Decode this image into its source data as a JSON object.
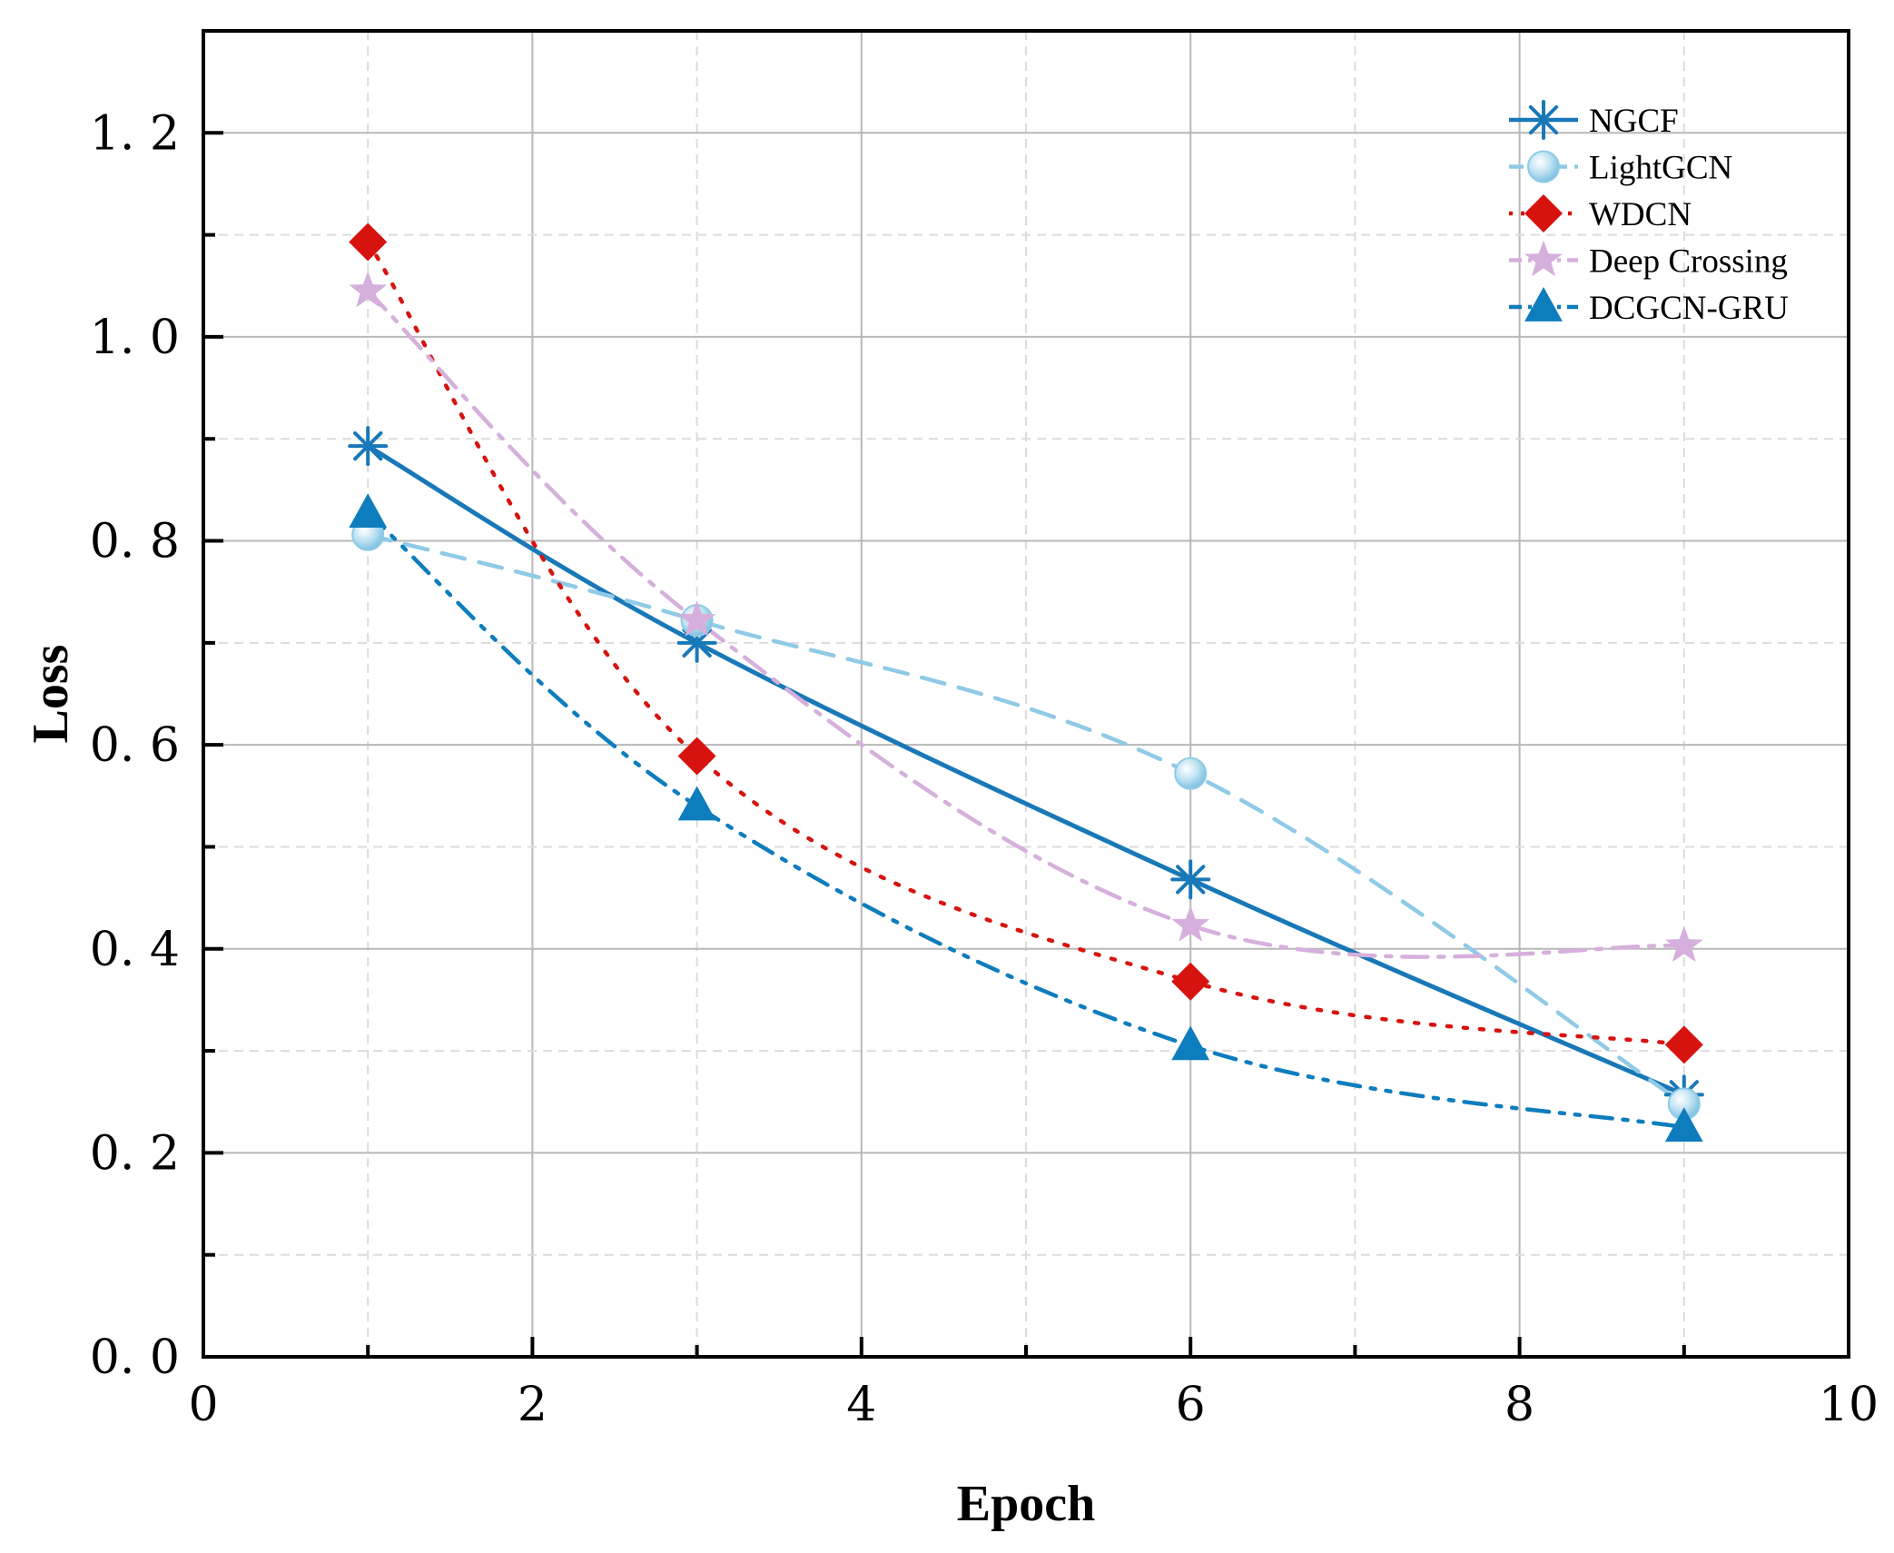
{
  "chart_data": {
    "type": "line",
    "title": "",
    "xlabel": "Epoch",
    "ylabel": "Loss",
    "xlim": [
      0,
      10
    ],
    "ylim": [
      0,
      1.3
    ],
    "xticks": [
      0,
      2,
      4,
      6,
      8,
      10
    ],
    "xtick_labels": [
      "0",
      "2",
      "4",
      "6",
      "8",
      "10"
    ],
    "yticks": [
      0.0,
      0.2,
      0.4,
      0.6,
      0.8,
      1.0,
      1.2
    ],
    "ytick_labels": [
      "0. 0",
      "0. 2",
      "0. 4",
      "0. 6",
      "0. 8",
      "1. 0",
      "1. 2"
    ],
    "grid": true,
    "legend_position": "top-right",
    "x": [
      1,
      3,
      6,
      9
    ],
    "series": [
      {
        "name": "NGCF",
        "values": [
          0.893,
          0.7,
          0.468,
          0.257
        ],
        "color": "#1878b8",
        "marker": "asterisk",
        "line": "solid"
      },
      {
        "name": "LightGCN",
        "values": [
          0.806,
          0.722,
          0.572,
          0.248
        ],
        "color": "#8fcae6",
        "marker": "circle",
        "line": "dashed"
      },
      {
        "name": "WDCN",
        "values": [
          1.093,
          0.589,
          0.368,
          0.306
        ],
        "color": "#d7130f",
        "marker": "diamond",
        "line": "dotted"
      },
      {
        "name": "Deep Crossing",
        "values": [
          1.045,
          0.722,
          0.423,
          0.403
        ],
        "color": "#d6b0dc",
        "marker": "star",
        "line": "dashdot"
      },
      {
        "name": "DCGCN-GRU",
        "values": [
          0.827,
          0.54,
          0.305,
          0.225
        ],
        "color": "#0d7dbd",
        "marker": "triangle",
        "line": "dashdotdot"
      }
    ]
  }
}
